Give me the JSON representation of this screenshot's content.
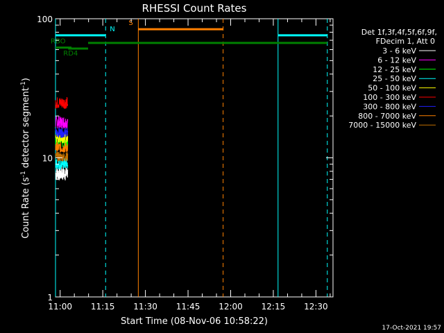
{
  "chart_data": {
    "type": "line",
    "title": "RHESSI Count Rates",
    "xlabel": "Start Time (08-Nov-06 10:58:22)",
    "ylabel_main": "Count Rate (s",
    "ylabel_sup1": "-1",
    "ylabel_mid": " detector segment",
    "ylabel_sup2": "-1",
    "ylabel_end": ")",
    "yscale": "log",
    "ylim": [
      1,
      100
    ],
    "xlim": [
      "10:58:22",
      "12:36:00"
    ],
    "x_ticks": [
      {
        "label": "11:00",
        "minute": 660
      },
      {
        "label": "11:15",
        "minute": 675
      },
      {
        "label": "11:30",
        "minute": 690
      },
      {
        "label": "11:45",
        "minute": 705
      },
      {
        "label": "12:00",
        "minute": 720
      },
      {
        "label": "12:15",
        "minute": 735
      },
      {
        "label": "12:30",
        "minute": 750
      }
    ],
    "y_ticks": [
      {
        "label": "1",
        "value": 1
      },
      {
        "label": "10",
        "value": 10
      },
      {
        "label": "100",
        "value": 100
      }
    ],
    "legend_header": [
      "Det 1f,3f,4f,5f,6f,9f,",
      "FDecim 1, Att 0"
    ],
    "legend_placement": "right",
    "series": [
      {
        "name": "3 - 6 keV",
        "color": "#ffffff",
        "time": [
          "10:58:22",
          "11:02:40"
        ],
        "range": [
          6.8,
          8.8
        ]
      },
      {
        "name": "6 - 12 keV",
        "color": "#ff00ff",
        "time": [
          "10:58:22",
          "11:02:40"
        ],
        "range": [
          16.2,
          20.0
        ]
      },
      {
        "name": "12 - 25 keV",
        "color": "#00ff00",
        "time": [
          "10:58:22",
          "11:02:40"
        ],
        "range": [
          11.8,
          14.2
        ]
      },
      {
        "name": "25 - 50 keV",
        "color": "#00ffff",
        "time": [
          "10:58:22",
          "11:02:40"
        ],
        "range": [
          8.2,
          10.0
        ]
      },
      {
        "name": "50 - 100 keV",
        "color": "#ffff00",
        "time": [
          "10:58:22",
          "11:02:40"
        ],
        "range": [
          12.8,
          15.0
        ]
      },
      {
        "name": "100 - 300 keV",
        "color": "#ff0000",
        "time": [
          "10:58:22",
          "11:02:40"
        ],
        "range": [
          22.5,
          27.5
        ]
      },
      {
        "name": "300 - 800 keV",
        "color": "#2020ff",
        "time": [
          "10:58:22",
          "11:02:40"
        ],
        "range": [
          14.0,
          16.5
        ]
      },
      {
        "name": "800 - 7000 keV",
        "color": "#ff8000",
        "time": [
          "10:58:22",
          "11:02:40"
        ],
        "range": [
          10.8,
          13.0
        ]
      },
      {
        "name": "7000 - 15000 keV",
        "color": "#c07000",
        "time": [
          "10:58:22",
          "11:02:40"
        ],
        "range": [
          9.4,
          11.0
        ]
      }
    ],
    "intervals": [
      {
        "label": "N",
        "color": "#00ffff",
        "start": "10:58:22",
        "end": "11:16:00",
        "level": 76
      },
      {
        "label": "",
        "color": "#00ffff",
        "start": "12:16:40",
        "end": "12:34:00",
        "level": 76
      },
      {
        "label": "S",
        "color": "#ff8000",
        "start": "11:27:30",
        "end": "11:57:20",
        "level": 84
      },
      {
        "label": "RBO",
        "color": "#008000",
        "start": "10:58:22",
        "end": "11:04:00",
        "level": 62
      },
      {
        "label": "RD4",
        "color": "#008000",
        "start": "11:02:50",
        "end": "11:09:50",
        "level": 61
      },
      {
        "label": "",
        "color": "#008000",
        "start": "11:09:50",
        "end": "12:34:00",
        "level": 67
      }
    ],
    "vlines": [
      {
        "time": "10:58:22",
        "color": "#00ffff",
        "style": "solid"
      },
      {
        "time": "11:16:00",
        "color": "#00ffff",
        "style": "dashed"
      },
      {
        "time": "11:27:30",
        "color": "#ff8000",
        "style": "solid"
      },
      {
        "time": "11:57:20",
        "color": "#ff8000",
        "style": "dashed"
      },
      {
        "time": "12:16:40",
        "color": "#00ffff",
        "style": "solid"
      },
      {
        "time": "12:34:00",
        "color": "#00ffff",
        "style": "dashed"
      }
    ],
    "footer_date": "17-Oct-2021 19:57",
    "grid": false
  }
}
